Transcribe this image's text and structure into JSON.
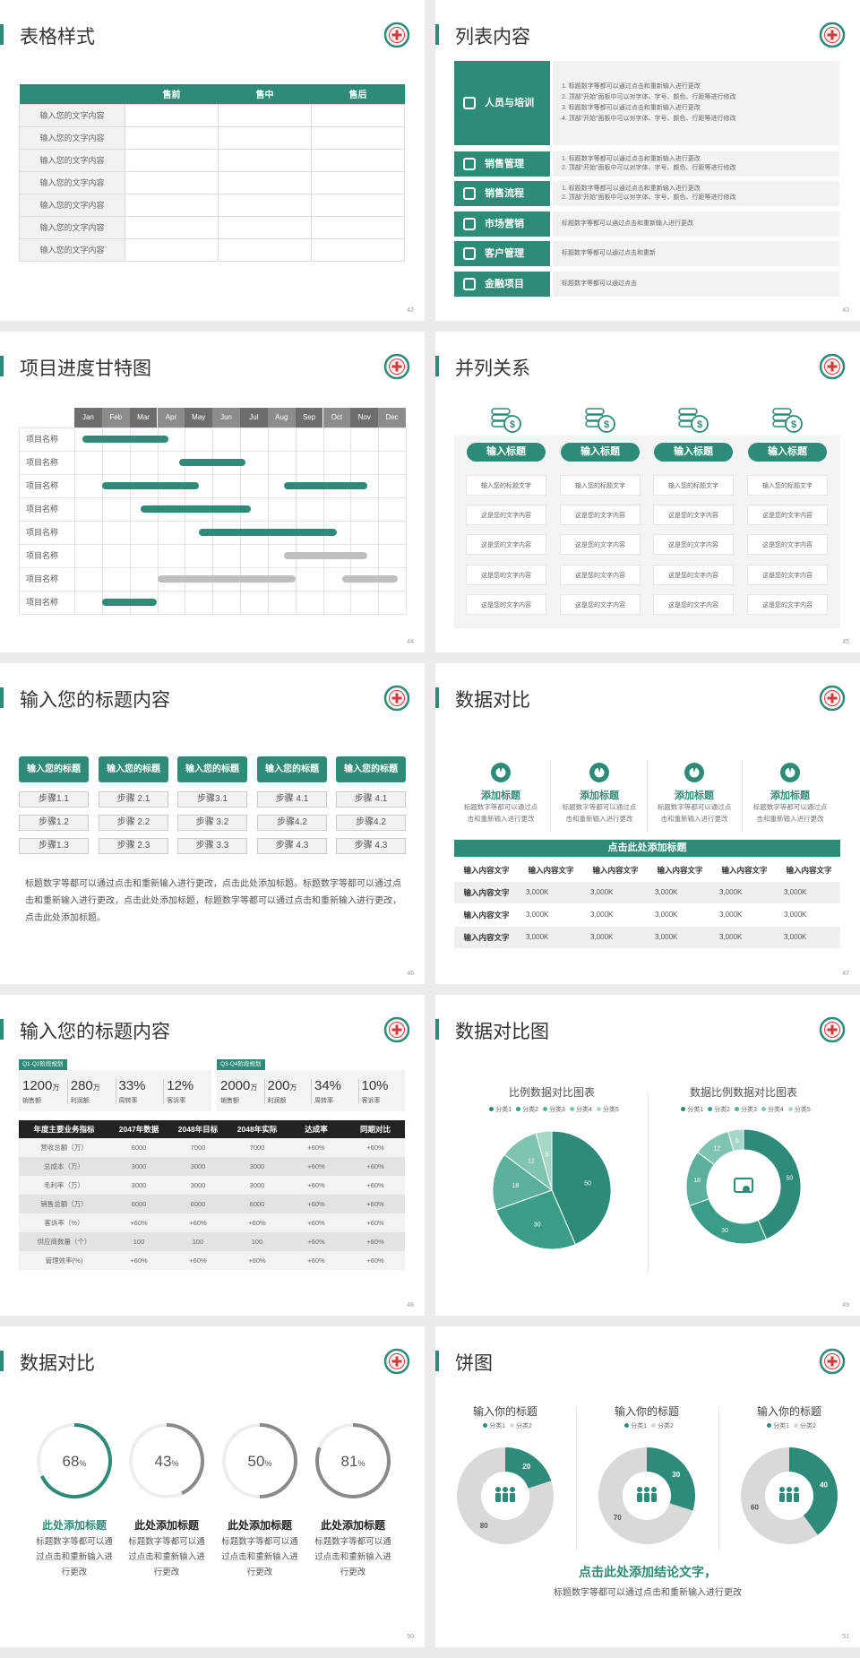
{
  "slides": [
    {
      "title": "表格样式",
      "page": 42,
      "table": {
        "header": [
          "售前",
          "售中",
          "售后"
        ],
        "rows": [
          "输入您的文字内容",
          "输入您的文字内容",
          "输入您的文字内容",
          "输入您的文字内容",
          "输入您的文字内容",
          "输入您的文字内容",
          "输入您的文字内容"
        ]
      }
    },
    {
      "title": "列表内容",
      "page": 43,
      "items": [
        {
          "name": "人员与培训",
          "lines": [
            "1.  标题数字等都可以通过点击和重新输入进行更改",
            "2.  顶部“开始”面板中可以对字体、字号、颜色、行距等进行修改",
            "3.  标题数字等都可以通过点击和重新输入进行更改",
            "4.  顶部“开始”面板中可以对字体、字号、颜色、行距等进行修改"
          ]
        },
        {
          "name": "销售管理",
          "lines": [
            "1.  标题数字等都可以通过点击和重新输入进行更改",
            "2.  顶部“开始”面板中可以对字体、字号、颜色、行距等进行修改"
          ]
        },
        {
          "name": "销售流程",
          "lines": [
            "1.  标题数字等都可以通过点击和重新输入进行更改",
            "2.  顶部“开始”面板中可以对字体、字号、颜色、行距等进行修改"
          ]
        },
        {
          "name": "市场营销",
          "lines": [
            "标题数字等都可以通过点击和重新输入进行更改"
          ]
        },
        {
          "name": "客户管理",
          "lines": [
            "标题数字等都可以通过点击和重新"
          ]
        },
        {
          "name": "金融项目",
          "lines": [
            "标题数字等都可以通过点击"
          ]
        }
      ]
    },
    {
      "title": "项目进度甘特图",
      "page": 44,
      "months": [
        "Jan",
        "Feb",
        "Mar",
        "Apr",
        "May",
        "Jun",
        "Jul",
        "Aug",
        "Sep",
        "Oct",
        "Nov",
        "Dec"
      ],
      "tasks": [
        {
          "name": "项目名称",
          "bars": [
            {
              "start": 0.3,
              "end": 3.4,
              "color": "#2e8b77"
            }
          ]
        },
        {
          "name": "项目名称",
          "bars": [
            {
              "start": 3.8,
              "end": 6.2,
              "color": "#2e8b77"
            }
          ]
        },
        {
          "name": "项目名称",
          "bars": [
            {
              "start": 1.0,
              "end": 4.5,
              "color": "#2e8b77"
            },
            {
              "start": 7.6,
              "end": 10.6,
              "color": "#2e8b77"
            }
          ]
        },
        {
          "name": "项目名称",
          "bars": [
            {
              "start": 2.4,
              "end": 6.4,
              "color": "#2e8b77"
            }
          ]
        },
        {
          "name": "项目名称",
          "bars": [
            {
              "start": 4.5,
              "end": 9.5,
              "color": "#2e8b77"
            }
          ]
        },
        {
          "name": "项目名称",
          "bars": [
            {
              "start": 7.6,
              "end": 10.6,
              "color": "#bfbfbf"
            }
          ]
        },
        {
          "name": "项目名称",
          "bars": [
            {
              "start": 3.0,
              "end": 8.0,
              "color": "#bfbfbf"
            },
            {
              "start": 9.7,
              "end": 11.7,
              "color": "#bfbfbf"
            }
          ]
        },
        {
          "name": "项目名称",
          "bars": [
            {
              "start": 1.0,
              "end": 3.0,
              "color": "#2e8b77"
            }
          ]
        }
      ]
    },
    {
      "title": "并列关系",
      "page": 45,
      "columns": [
        {
          "heading": "输入标题",
          "cells": [
            "输入您的标题文字",
            "这是您的文字内容",
            "这是您的文字内容",
            "这是您的文字内容",
            "这是您的文字内容"
          ]
        },
        {
          "heading": "输入标题",
          "cells": [
            "输入您的标题文字",
            "这是您的文字内容",
            "这是您的文字内容",
            "这是您的文字内容",
            "这是您的文字内容"
          ]
        },
        {
          "heading": "输入标题",
          "cells": [
            "输入您的标题文字",
            "这是您的文字内容",
            "这是您的文字内容",
            "这是您的文字内容",
            "这是您的文字内容"
          ]
        },
        {
          "heading": "输入标题",
          "cells": [
            "输入您的标题文字",
            "这是您的文字内容",
            "这是您的文字内容",
            "这是您的文字内容",
            "这是您的文字内容"
          ]
        }
      ]
    },
    {
      "title": "输入您的标题内容",
      "page": 46,
      "columns": [
        {
          "heading": "输入您的标题",
          "steps": [
            "步骤1.1",
            "步骤1.2",
            "步骤1.3"
          ]
        },
        {
          "heading": "输入您的标题",
          "steps": [
            "步骤 2.1",
            "步骤 2.2",
            "步骤 2.3"
          ]
        },
        {
          "heading": "输入您的标题",
          "steps": [
            "步骤3.1",
            "步骤 3.2",
            "步骤 3.3"
          ]
        },
        {
          "heading": "输入您的标题",
          "steps": [
            "步骤 4.1",
            "步骤4.2",
            "步骤 4.3"
          ]
        },
        {
          "heading": "输入您的标题",
          "steps": [
            "步骤 4.1",
            "步骤4.2",
            "步骤 4.3"
          ]
        }
      ],
      "paragraph": "标题数字等都可以通过点击和重新输入进行更改，点击此处添加标题。标题数字等都可以通过点击和重新输入进行更改，点击此处添加标题，标题数字等都可以通过点击和重新输入进行更改，点击此处添加标题。"
    },
    {
      "title": "数据对比",
      "page": 47,
      "features": [
        {
          "title": "添加标题",
          "text": "标题数字等都可以通过点击和重新输入进行更改"
        },
        {
          "title": "添加标题",
          "text": "标题数字等都可以通过点击和重新输入进行更改"
        },
        {
          "title": "添加标题",
          "text": "标题数字等都可以通过点击和重新输入进行更改"
        },
        {
          "title": "添加标题",
          "text": "标题数字等都可以通过点击和重新输入进行更改"
        }
      ],
      "table": {
        "caption": "点击此处添加标题",
        "header": [
          "输入内容文字",
          "输入内容文字",
          "输入内容文字",
          "输入内容文字",
          "输入内容文字",
          "输入内容文字"
        ],
        "rows": [
          {
            "label": "输入内容文字",
            "cells": [
              "3,000K",
              "3,000K",
              "3,000K",
              "3,000K",
              "3,000K"
            ]
          },
          {
            "label": "输入内容文字",
            "cells": [
              "3,000K",
              "3,000K",
              "3,000K",
              "3,000K",
              "3,000K"
            ]
          },
          {
            "label": "输入内容文字",
            "cells": [
              "3,000K",
              "3,000K",
              "3,000K",
              "3,000K",
              "3,000K"
            ]
          }
        ]
      }
    },
    {
      "title": "输入您的标题内容",
      "page": 48,
      "blocks": [
        {
          "label": "Q1-Q2阶段规划",
          "kpis": [
            {
              "value": "1200",
              "unit": "万",
              "name": "销售额"
            },
            {
              "value": "280",
              "unit": "万",
              "name": "利润额"
            },
            {
              "value": "33%",
              "name": "周转率"
            },
            {
              "value": "12%",
              "name": "客诉率"
            }
          ]
        },
        {
          "label": "Q3-Q4阶段规划",
          "kpis": [
            {
              "value": "2000",
              "unit": "万",
              "name": "销售额"
            },
            {
              "value": "200",
              "unit": "万",
              "name": "利润额"
            },
            {
              "value": "34%",
              "name": "周转率"
            },
            {
              "value": "10%",
              "name": "客诉率"
            }
          ]
        }
      ],
      "table": {
        "header": [
          "年度主要业务指标",
          "2047年数据",
          "2048年目标",
          "2048年实际",
          "达成率",
          "同期对比"
        ],
        "rows": [
          [
            "营收总额（万）",
            "6000",
            "7000",
            "7000",
            "+60%",
            "+60%"
          ],
          [
            "总成本（万）",
            "3000",
            "3000",
            "3000",
            "+60%",
            "+60%"
          ],
          [
            "毛利率（万）",
            "3000",
            "3000",
            "3000",
            "+60%",
            "+60%"
          ],
          [
            "销售总额（万）",
            "6000",
            "6000",
            "6000",
            "+60%",
            "+60%"
          ],
          [
            "客诉率（%）",
            "+60%",
            "+60%",
            "+60%",
            "+60%",
            "+60%"
          ],
          [
            "供应商数量（个）",
            "100",
            "100",
            "100",
            "+60%",
            "+60%"
          ],
          [
            "管理效率(%)",
            "+60%",
            "+60%",
            "+60%",
            "+60%",
            "+60%"
          ]
        ]
      }
    },
    {
      "title": "数据对比图",
      "page": 49,
      "charts": [
        {
          "title": "比例数据对比图表",
          "categories": [
            "分类1",
            "分类2",
            "分类3",
            "分类4",
            "分类5"
          ],
          "values": [
            50,
            30,
            18,
            12,
            5
          ],
          "colors": [
            "#2e8b77",
            "#3a9d86",
            "#5bb09c",
            "#7fc3b2",
            "#a7d6ca"
          ]
        },
        {
          "title": "数据比例数据对比图表",
          "categories": [
            "分类1",
            "分类2",
            "分类3",
            "分类4",
            "分类5"
          ],
          "values": [
            50,
            30,
            18,
            12,
            5
          ],
          "colors": [
            "#2e8b77",
            "#3a9d86",
            "#5bb09c",
            "#7fc3b2",
            "#a7d6ca"
          ]
        }
      ]
    },
    {
      "title": "数据对比",
      "page": 50,
      "rings": [
        {
          "value": 68,
          "unit": "%",
          "color": "#2e8b77",
          "title": "此处添加标题",
          "text": "标题数字等都可以通过点击和重新输入进行更改"
        },
        {
          "value": 43,
          "unit": "%",
          "color": "#8a8a8a",
          "title": "此处添加标题",
          "text": "标题数字等都可以通过点击和重新输入进行更改"
        },
        {
          "value": 50,
          "unit": "%",
          "color": "#8a8a8a",
          "title": "此处添加标题",
          "text": "标题数字等都可以通过点击和重新输入进行更改"
        },
        {
          "value": 81,
          "unit": "%",
          "color": "#8a8a8a",
          "title": "此处添加标题",
          "text": "标题数字等都可以通过点击和重新输入进行更改"
        }
      ]
    },
    {
      "title": "饼图",
      "page": 51,
      "charts": [
        {
          "title": "输入你的标题",
          "categories": [
            "分类1",
            "分类2"
          ],
          "values": [
            20,
            80
          ],
          "colors": [
            "#2e8b77",
            "#d9d9d9"
          ]
        },
        {
          "title": "输入你的标题",
          "categories": [
            "分类1",
            "分类2"
          ],
          "values": [
            30,
            70
          ],
          "colors": [
            "#2e8b77",
            "#d9d9d9"
          ]
        },
        {
          "title": "输入你的标题",
          "categories": [
            "分类1",
            "分类2"
          ],
          "values": [
            40,
            60
          ],
          "colors": [
            "#2e8b77",
            "#d9d9d9"
          ]
        }
      ],
      "conclusion": "点击此处添加结论文字，",
      "note": "标题数字等都可以通过点击和重新输入进行更改"
    }
  ]
}
